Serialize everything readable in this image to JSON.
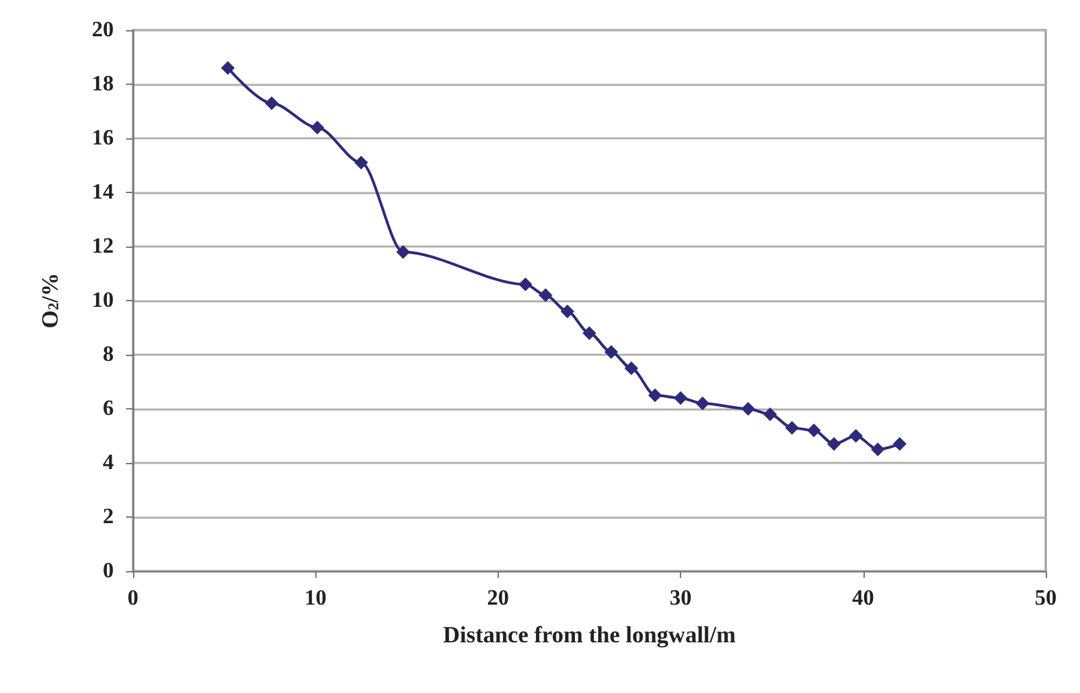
{
  "chart_data": {
    "type": "line",
    "xlabel": "Distance from the longwall/m",
    "ylabel": "O$_{2}$/%",
    "x": [
      5.2,
      7.6,
      10.1,
      12.5,
      14.8,
      21.5,
      22.6,
      23.8,
      25.0,
      26.2,
      27.3,
      28.6,
      30.0,
      31.2,
      33.7,
      34.9,
      36.1,
      37.3,
      38.4,
      39.6,
      40.8,
      42.0
    ],
    "series": [
      {
        "color": "#2e2a7a",
        "values": [
          18.6,
          17.3,
          16.4,
          15.1,
          11.8,
          10.6,
          10.2,
          9.6,
          8.8,
          8.1,
          7.5,
          6.5,
          6.4,
          6.2,
          6.0,
          5.8,
          5.3,
          5.2,
          4.7,
          5.0,
          4.5,
          4.7
        ]
      }
    ],
    "xlim": [
      0,
      50
    ],
    "xticks": [
      0,
      10,
      20,
      30,
      40,
      50
    ],
    "ylim": [
      0,
      20
    ],
    "yticks": [
      0,
      2,
      4,
      6,
      8,
      10,
      12,
      14,
      16,
      18,
      20
    ],
    "grid": "y",
    "marker": "diamond",
    "line_style": "solid"
  }
}
